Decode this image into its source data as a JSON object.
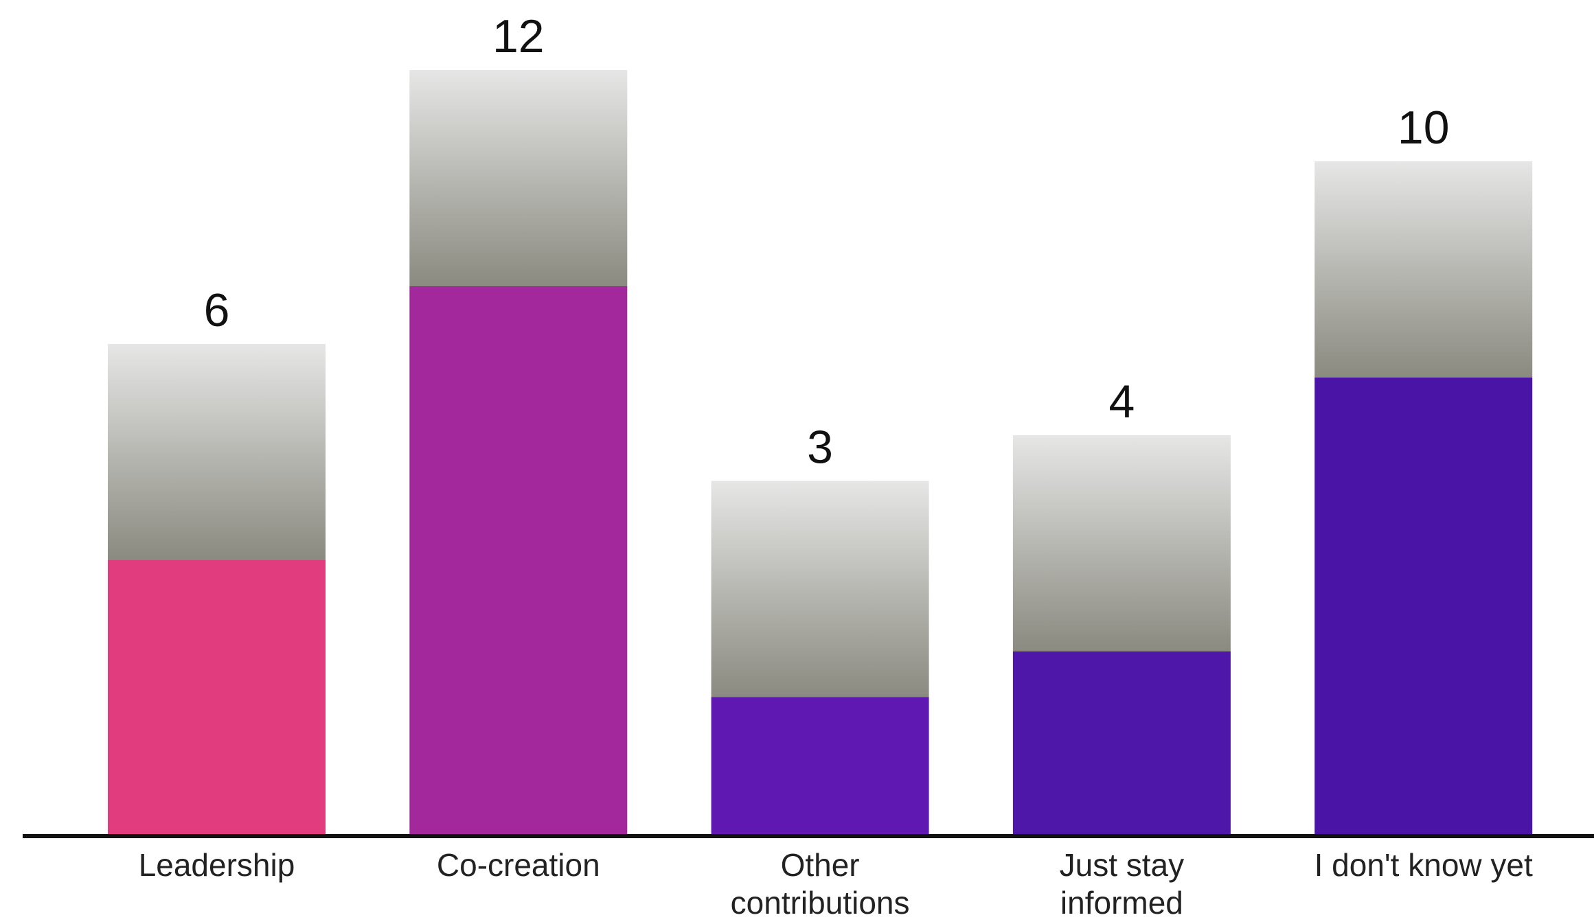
{
  "chart_data": {
    "type": "bar",
    "categories": [
      "Leadership",
      "Co-creation",
      "Other contributions",
      "Just stay informed",
      "I don't know yet"
    ],
    "values": [
      6,
      12,
      3,
      4,
      10
    ],
    "colors": [
      "#e13c7e",
      "#a3289b",
      "#5f18b1",
      "#4f16aa",
      "#4a14a6"
    ]
  }
}
